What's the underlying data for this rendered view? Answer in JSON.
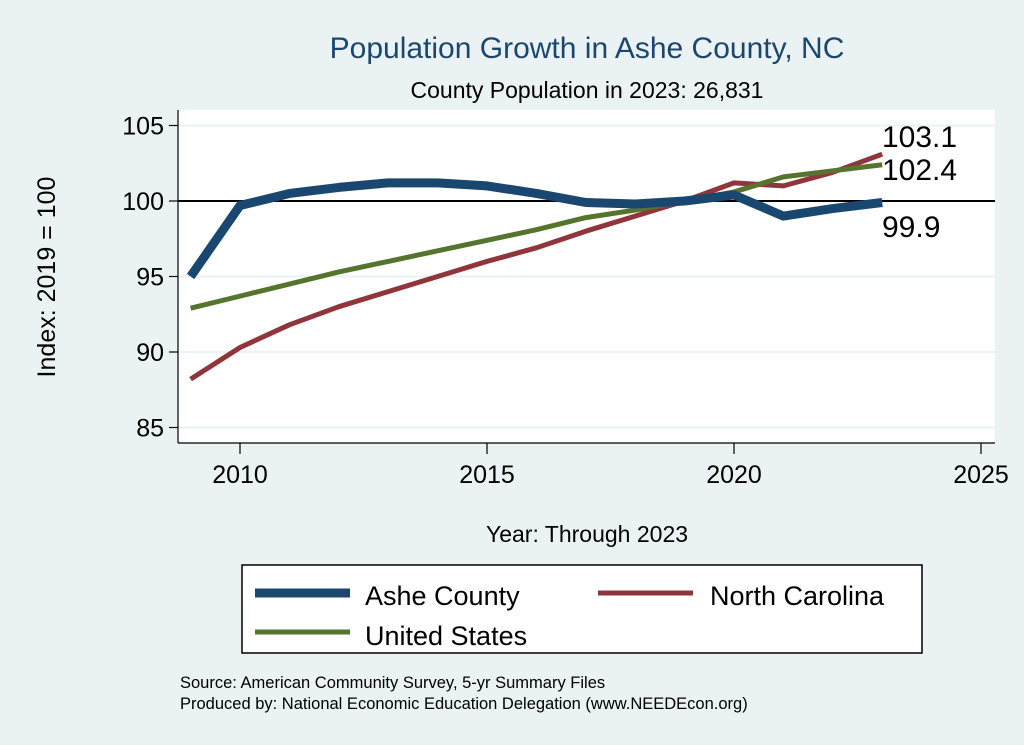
{
  "chart_data": {
    "type": "line",
    "title": "Population Growth in Ashe County, NC",
    "subtitle": "County Population in 2023: 26,831",
    "xlabel": "Year: Through 2023",
    "ylabel": "Index: 2019 = 100",
    "xlim": [
      2008.75,
      2025.3
    ],
    "ylim": [
      84,
      106
    ],
    "x_ticks": [
      2010,
      2015,
      2020,
      2025
    ],
    "y_ticks": [
      85,
      90,
      95,
      100,
      105
    ],
    "reference_line": 100,
    "grid": true,
    "legend_position": "bottom",
    "x": [
      2009,
      2010,
      2011,
      2012,
      2013,
      2014,
      2015,
      2016,
      2017,
      2018,
      2019,
      2020,
      2021,
      2022,
      2023
    ],
    "series": [
      {
        "name": "Ashe  County",
        "color": "#1a476f",
        "width": 9,
        "values": [
          95.0,
          99.7,
          100.5,
          100.9,
          101.2,
          101.2,
          101.0,
          100.5,
          99.9,
          99.8,
          100.0,
          100.4,
          99.0,
          99.5,
          99.9
        ],
        "end_label": "99.9"
      },
      {
        "name": "North Carolina",
        "color": "#90353b",
        "width": 5,
        "values": [
          88.2,
          90.3,
          91.8,
          93.0,
          94.0,
          95.0,
          96.0,
          96.9,
          98.0,
          99.0,
          100.0,
          101.2,
          101.0,
          101.9,
          103.1
        ],
        "end_label": "103.1"
      },
      {
        "name": "United States",
        "color": "#55752f",
        "width": 5,
        "values": [
          92.9,
          93.7,
          94.5,
          95.3,
          96.0,
          96.7,
          97.4,
          98.1,
          98.9,
          99.4,
          100.0,
          100.6,
          101.6,
          102.0,
          102.4
        ],
        "end_label": "102.4"
      }
    ],
    "notes": [
      "Source: American Community Survey, 5-yr Summary Files",
      "Produced by: National Economic Education Delegation (www.NEEDEcon.org)"
    ]
  },
  "colors": {
    "background": "#eaf2f3",
    "plot_background": "#ffffff",
    "title": "#1a476f"
  }
}
